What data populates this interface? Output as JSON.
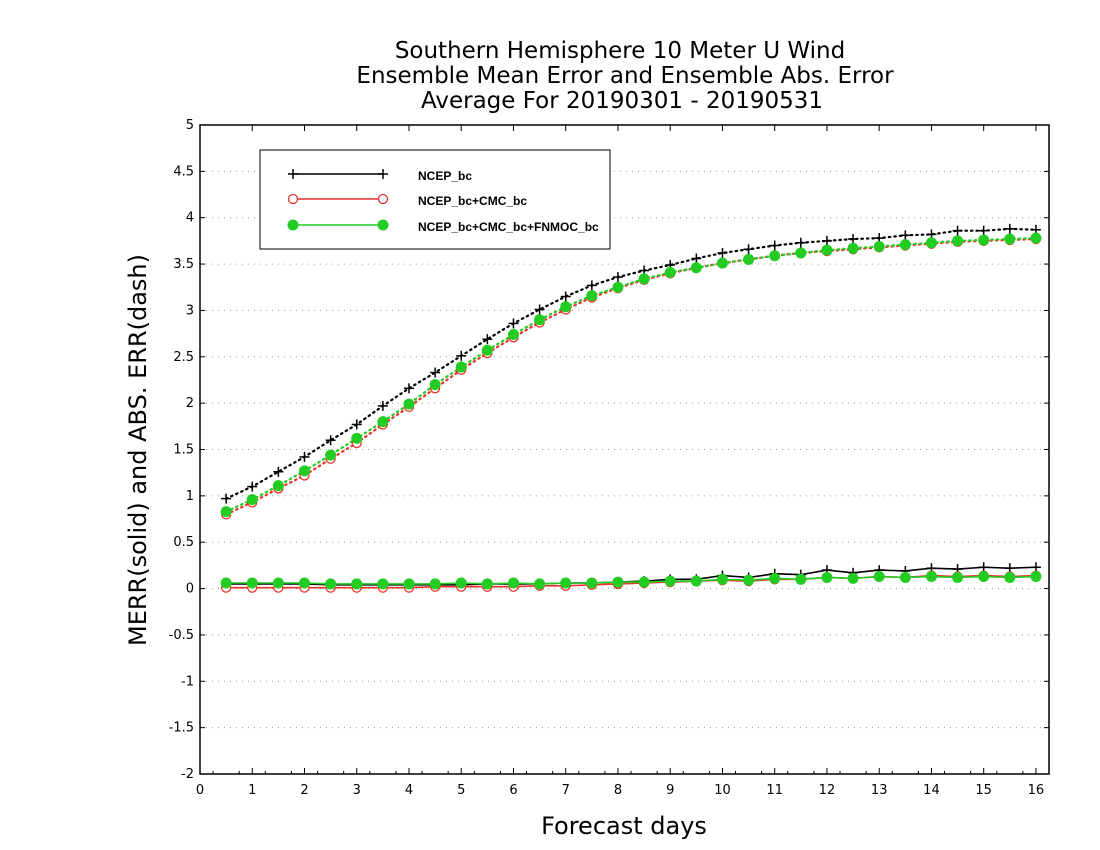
{
  "chart_data": {
    "type": "line",
    "title": [
      "Southern Hemisphere 10 Meter U Wind",
      "Ensemble Mean Error and Ensemble Abs. Error",
      "Average For 20190301 - 20190531"
    ],
    "xlabel": "Forecast days",
    "ylabel": "MERR(solid) and ABS. ERR(dash)",
    "xlim": [
      0,
      16.25
    ],
    "ylim": [
      -2,
      5
    ],
    "xticks": [
      0,
      1,
      2,
      3,
      4,
      5,
      6,
      7,
      8,
      9,
      10,
      11,
      12,
      13,
      14,
      15,
      16
    ],
    "yticks": [
      -2,
      -1.5,
      -1,
      -0.5,
      0,
      0.5,
      1,
      1.5,
      2,
      2.5,
      3,
      3.5,
      4,
      4.5,
      5
    ],
    "ytick_labels": [
      "-2",
      "-1.5",
      "-1",
      "-0.5",
      "0",
      "0.5",
      "1",
      "1.5",
      "2",
      "2.5",
      "3",
      "3.5",
      "4",
      "4.5",
      "5"
    ],
    "grid": "horizontal dotted",
    "legend_position": "top-left",
    "x": [
      0.5,
      1,
      1.5,
      2,
      2.5,
      3,
      3.5,
      4,
      4.5,
      5,
      5.5,
      6,
      6.5,
      7,
      7.5,
      8,
      8.5,
      9,
      9.5,
      10,
      10.5,
      11,
      11.5,
      12,
      12.5,
      13,
      13.5,
      14,
      14.5,
      15,
      15.5,
      16
    ],
    "series": [
      {
        "name": "NCEP_bc",
        "color": "#000000",
        "marker": "plus",
        "merr": [
          0.05,
          0.05,
          0.05,
          0.05,
          0.04,
          0.04,
          0.04,
          0.04,
          0.04,
          0.04,
          0.05,
          0.05,
          0.05,
          0.06,
          0.06,
          0.07,
          0.08,
          0.1,
          0.1,
          0.14,
          0.12,
          0.16,
          0.15,
          0.2,
          0.17,
          0.2,
          0.19,
          0.22,
          0.21,
          0.23,
          0.22,
          0.23
        ],
        "abs_err": [
          0.97,
          1.1,
          1.26,
          1.42,
          1.6,
          1.77,
          1.97,
          2.16,
          2.33,
          2.51,
          2.69,
          2.86,
          3.01,
          3.15,
          3.27,
          3.36,
          3.43,
          3.49,
          3.56,
          3.62,
          3.66,
          3.7,
          3.73,
          3.75,
          3.77,
          3.78,
          3.81,
          3.82,
          3.86,
          3.86,
          3.88,
          3.87
        ]
      },
      {
        "name": "NCEP_bc+CMC_bc",
        "color": "#e8332a",
        "marker": "open-circle",
        "merr": [
          0.01,
          0.01,
          0.01,
          0.01,
          0.01,
          0.01,
          0.01,
          0.01,
          0.02,
          0.02,
          0.02,
          0.02,
          0.03,
          0.03,
          0.04,
          0.05,
          0.06,
          0.07,
          0.08,
          0.09,
          0.08,
          0.1,
          0.1,
          0.12,
          0.11,
          0.13,
          0.12,
          0.14,
          0.13,
          0.14,
          0.13,
          0.14
        ],
        "abs_err": [
          0.8,
          0.93,
          1.08,
          1.22,
          1.4,
          1.57,
          1.77,
          1.96,
          2.16,
          2.36,
          2.54,
          2.71,
          2.87,
          3.01,
          3.14,
          3.24,
          3.33,
          3.4,
          3.46,
          3.51,
          3.55,
          3.59,
          3.62,
          3.64,
          3.66,
          3.68,
          3.7,
          3.72,
          3.74,
          3.75,
          3.76,
          3.77
        ]
      },
      {
        "name": "NCEP_bc+CMC_bc+FNMOC_bc",
        "color": "#22cc22",
        "marker": "filled-circle",
        "merr": [
          0.06,
          0.06,
          0.06,
          0.06,
          0.05,
          0.05,
          0.05,
          0.05,
          0.05,
          0.06,
          0.05,
          0.06,
          0.05,
          0.06,
          0.06,
          0.07,
          0.07,
          0.08,
          0.08,
          0.1,
          0.09,
          0.11,
          0.1,
          0.12,
          0.11,
          0.13,
          0.12,
          0.13,
          0.12,
          0.13,
          0.12,
          0.13
        ],
        "abs_err": [
          0.83,
          0.96,
          1.11,
          1.27,
          1.44,
          1.62,
          1.8,
          1.99,
          2.2,
          2.39,
          2.57,
          2.74,
          2.9,
          3.04,
          3.16,
          3.25,
          3.34,
          3.41,
          3.46,
          3.51,
          3.55,
          3.59,
          3.62,
          3.65,
          3.67,
          3.69,
          3.71,
          3.73,
          3.75,
          3.76,
          3.77,
          3.78
        ]
      }
    ]
  }
}
